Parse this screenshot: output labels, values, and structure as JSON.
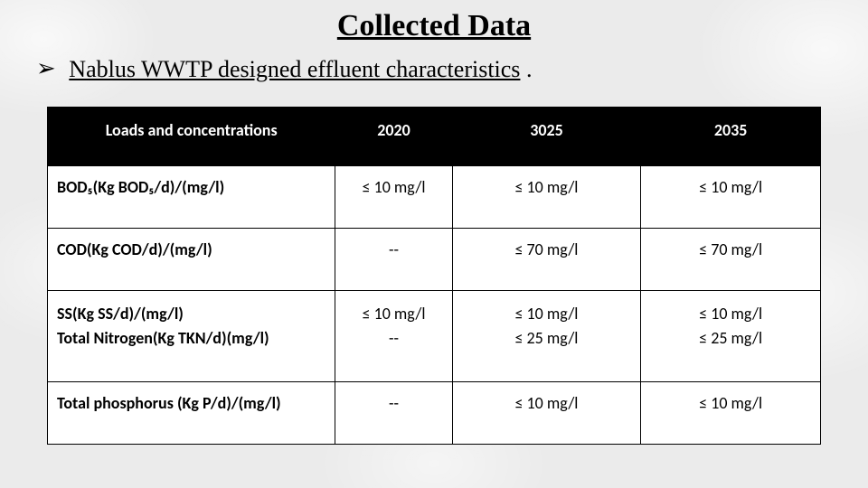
{
  "title": "Collected Data",
  "bullet_glyph": "➢",
  "subtitle": "Nablus WWTP designed effluent characteristics",
  "trailing": " .",
  "table": {
    "columns": [
      "Loads and concentrations",
      "2020",
      "3025",
      "2035"
    ],
    "rows": [
      {
        "label": "BOD₅(Kg BOD₅/d)/(mg/l)",
        "c2020": "≤ 10 mg/l",
        "c3025": "≤ 10 mg/l",
        "c2035": "≤ 10 mg/l"
      },
      {
        "label": "COD(Kg COD/d)/(mg/l)",
        "c2020": "--",
        "c3025": "≤ 70 mg/l",
        "c2035": "≤ 70 mg/l"
      },
      {
        "label": "SS(Kg SS/d)/(mg/l)\nTotal Nitrogen(Kg TKN/d)(mg/l)",
        "c2020": "≤ 10 mg/l\n--",
        "c3025": "≤ 10 mg/l\n≤ 25 mg/l",
        "c2035": "≤ 10 mg/l\n≤ 25 mg/l"
      },
      {
        "label": "Total phosphorus (Kg P/d)/(mg/l)",
        "c2020": "--",
        "c3025": "≤ 10 mg/l",
        "c2035": "≤ 10 mg/l"
      }
    ]
  },
  "style": {
    "header_bg": "#000000",
    "header_fg": "#ffffff",
    "cell_bg": "#ffffff",
    "border_color": "#000000",
    "body_font": "Calibri",
    "title_font": "Times New Roman",
    "title_size_pt": 26,
    "subtitle_size_pt": 20,
    "cell_size_pt": 13
  }
}
